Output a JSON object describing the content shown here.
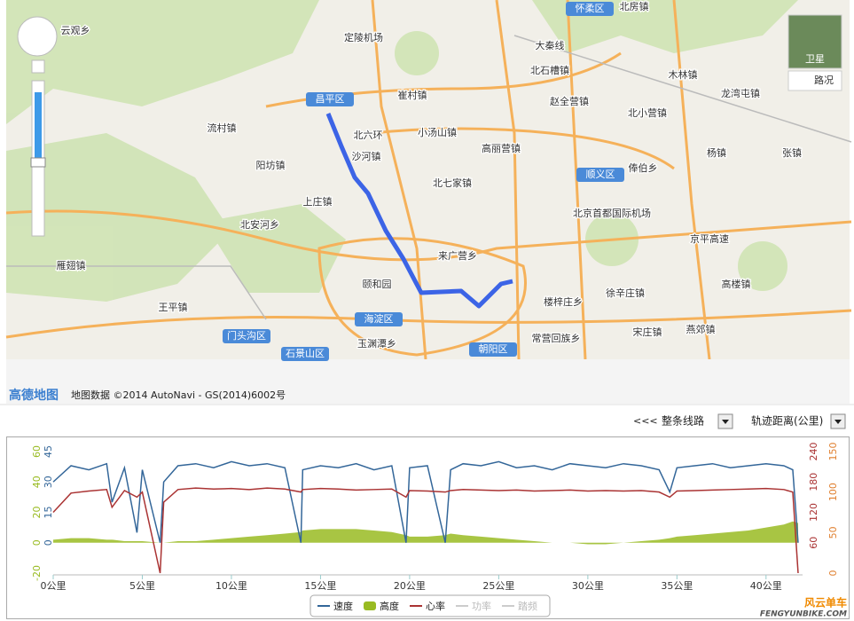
{
  "map": {
    "labels": [
      "云观乡",
      "定陵机场",
      "北房镇",
      "大秦线",
      "北石槽镇",
      "崔村镇",
      "赵全营镇",
      "木林镇",
      "龙湾屯镇",
      "北小营镇",
      "流村镇",
      "小汤山镇",
      "高丽营镇",
      "沙河镇",
      "阳坊镇",
      "俸伯乡",
      "杨镇",
      "张镇",
      "北七家镇",
      "上庄镇",
      "北京首都国际机场",
      "北安河乡",
      "来广营乡",
      "京平高速",
      "雁翅镇",
      "颐和园",
      "高楼镇",
      "王平镇",
      "楼梓庄乡",
      "徐辛庄镇",
      "玉渊潭乡",
      "宋庄镇",
      "燕郊镇",
      "常营回族乡",
      "北六环"
    ],
    "districts": [
      "怀柔区",
      "昌平区",
      "顺义区",
      "海淀区",
      "门头沟区",
      "石景山区",
      "朝阳区"
    ],
    "satellite": "卫星",
    "traffic": "路况",
    "logo": "高德地图",
    "copyright": "地图数据 ©2014 AutoNavi - GS(2014)6002号"
  },
  "toolbar": {
    "prev": "<<<",
    "route": "整条线路",
    "axis": "轨迹距离(公里)"
  },
  "watermark": {
    "cn": "风云单车",
    "en": "FENGYUNBIKE.COM"
  },
  "chart_data": {
    "type": "line",
    "x": [
      0,
      1,
      2,
      3,
      3.3,
      4,
      4.7,
      5,
      6,
      6.2,
      7,
      8,
      9,
      10,
      11,
      12,
      13,
      13.9,
      14,
      15,
      16,
      17,
      18,
      19,
      19.8,
      20,
      21,
      22,
      22.3,
      23,
      24,
      25,
      26,
      27,
      28,
      29,
      30,
      31,
      32,
      33,
      34,
      34.6,
      35,
      36,
      37,
      38,
      39,
      40,
      41,
      41.5,
      41.8
    ],
    "xlim": [
      0,
      42
    ],
    "xticks": [
      {
        "value": 0,
        "label": "0公里"
      },
      {
        "value": 5,
        "label": "5公里"
      },
      {
        "value": 10,
        "label": "10公里"
      },
      {
        "value": 15,
        "label": "15公里"
      },
      {
        "value": 20,
        "label": "20公里"
      },
      {
        "value": 25,
        "label": "25公里"
      },
      {
        "value": 30,
        "label": "30公里"
      },
      {
        "value": 35,
        "label": "35公里"
      },
      {
        "value": 40,
        "label": "40公里"
      }
    ],
    "axes": [
      {
        "lim": [
          -15,
          45
        ],
        "ticks": [
          0,
          15,
          30,
          45
        ],
        "color": "#336699"
      },
      {
        "lim": [
          -20,
          60
        ],
        "ticks": [
          -20,
          0,
          20,
          40,
          60
        ],
        "color": "#99bb22"
      },
      {
        "lim": [
          0,
          240
        ],
        "ticks": [
          60,
          120,
          180,
          240
        ],
        "color": "#aa3333"
      },
      {
        "lim": [
          0,
          150
        ],
        "ticks": [
          0,
          50,
          100,
          150
        ],
        "color": "#e08030"
      }
    ],
    "series": [
      {
        "name": "速度",
        "color": "#336699",
        "axis": 0,
        "values": [
          30,
          38,
          36,
          39,
          20,
          37,
          5,
          36,
          0,
          30,
          38,
          39,
          37,
          40,
          38,
          39,
          37,
          0,
          36,
          38,
          37,
          39,
          36,
          38,
          0,
          37,
          38,
          0,
          36,
          39,
          38,
          40,
          37,
          38,
          36,
          39,
          38,
          37,
          39,
          38,
          36,
          25,
          37,
          38,
          39,
          37,
          38,
          39,
          38,
          36,
          0
        ]
      },
      {
        "name": "高度",
        "color": "#99bb22",
        "axis": 1,
        "fill": true,
        "values": [
          2,
          3,
          3,
          2,
          2,
          1,
          1,
          1,
          0,
          0,
          1,
          1,
          2,
          3,
          4,
          5,
          6,
          7,
          8,
          9,
          9,
          9,
          8,
          7,
          5,
          4,
          4,
          5,
          6,
          5,
          4,
          3,
          2,
          1,
          0,
          0,
          -1,
          -1,
          0,
          1,
          2,
          3,
          4,
          5,
          6,
          7,
          8,
          10,
          12,
          14,
          13
        ]
      },
      {
        "name": "心率",
        "color": "#aa3333",
        "axis": 2,
        "values": [
          120,
          158,
          162,
          165,
          130,
          163,
          150,
          160,
          0,
          140,
          165,
          168,
          166,
          167,
          165,
          168,
          166,
          160,
          165,
          167,
          166,
          164,
          165,
          166,
          150,
          163,
          162,
          160,
          163,
          165,
          164,
          163,
          164,
          162,
          163,
          164,
          162,
          163,
          162,
          163,
          160,
          150,
          162,
          163,
          164,
          165,
          166,
          167,
          165,
          160,
          0
        ]
      },
      {
        "name": "功率",
        "color": "#cccccc",
        "axis": 3
      },
      {
        "name": "踏频",
        "color": "#cccccc"
      }
    ]
  }
}
